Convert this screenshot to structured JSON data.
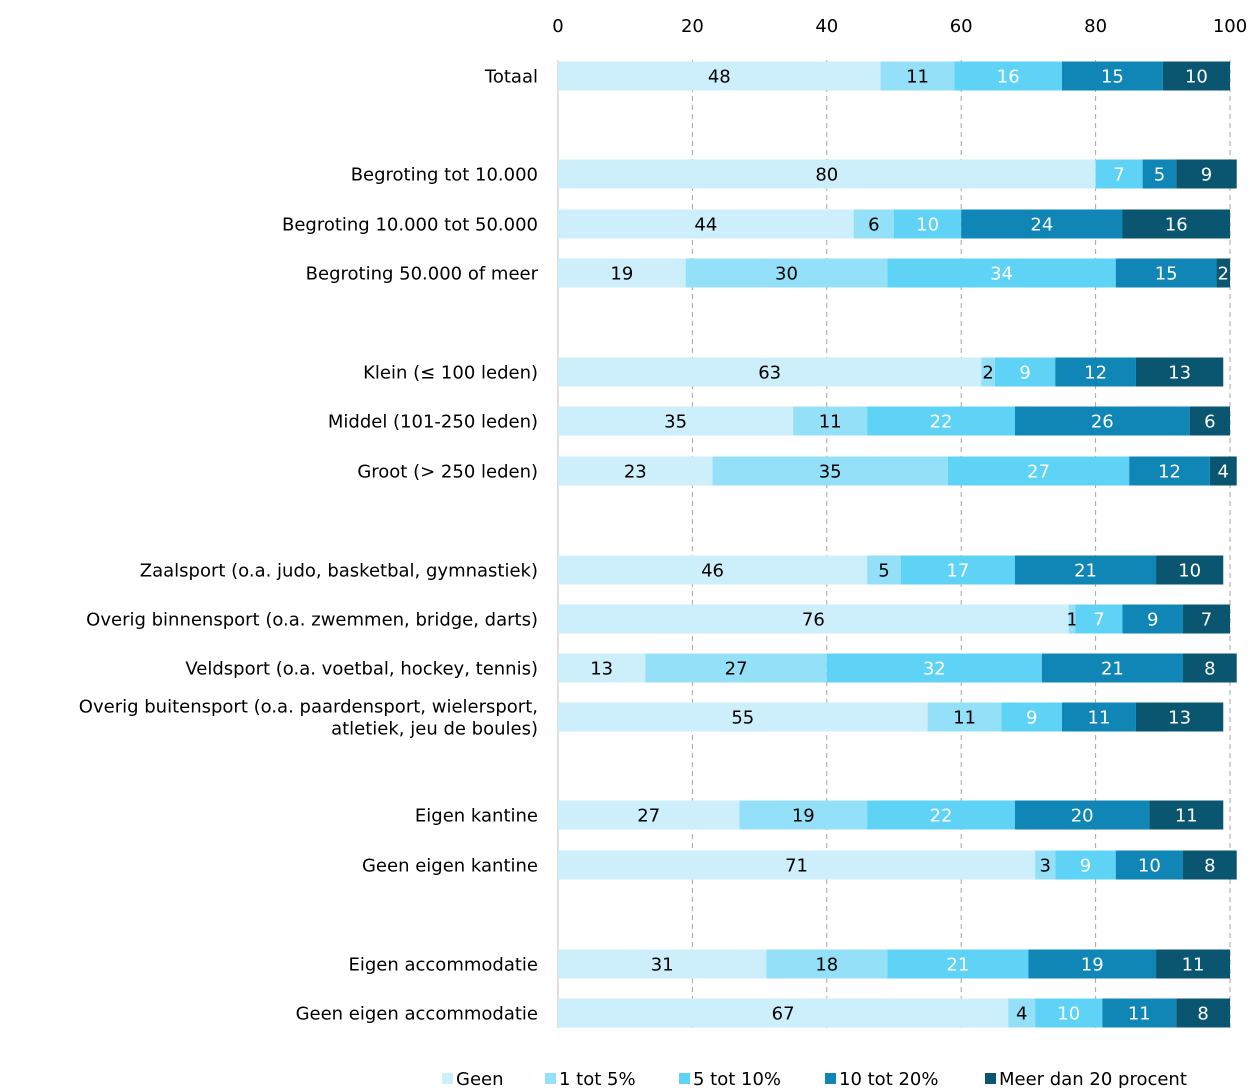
{
  "chart_data": {
    "type": "bar",
    "orientation": "horizontal",
    "stacked": true,
    "xlim": [
      0,
      100
    ],
    "xticks": [
      "0",
      "20",
      "40",
      "60",
      "80",
      "100"
    ],
    "grid": "vertical dashed",
    "legend_position": "bottom",
    "categories": [
      {
        "label": "Totaal",
        "values": [
          48,
          11,
          16,
          15,
          10
        ]
      },
      {
        "label": "Begroting tot 10.000",
        "values": [
          80,
          0,
          7,
          5,
          9
        ]
      },
      {
        "label": "Begroting 10.000 tot 50.000",
        "values": [
          44,
          6,
          10,
          24,
          16
        ]
      },
      {
        "label": "Begroting 50.000 of meer",
        "values": [
          19,
          30,
          34,
          15,
          2
        ]
      },
      {
        "label": "Klein (≤ 100 leden)",
        "values": [
          63,
          2,
          9,
          12,
          13
        ]
      },
      {
        "label": "Middel (101-250 leden)",
        "values": [
          35,
          11,
          22,
          26,
          6
        ]
      },
      {
        "label": "Groot (> 250 leden)",
        "values": [
          23,
          35,
          27,
          12,
          4
        ]
      },
      {
        "label": "Zaalsport (o.a. judo, basketbal, gymnastiek)",
        "values": [
          46,
          5,
          17,
          21,
          10
        ]
      },
      {
        "label": "Overig binnensport (o.a. zwemmen, bridge, darts)",
        "values": [
          76,
          1,
          7,
          9,
          7
        ]
      },
      {
        "label": "Veldsport (o.a. voetbal, hockey, tennis)",
        "values": [
          13,
          27,
          32,
          21,
          8
        ]
      },
      {
        "label": "Overig buitensport (o.a. paardensport, wielersport, atletiek, jeu de boules)",
        "label_lines": [
          "Overig buitensport (o.a. paardensport, wielersport,",
          "atletiek, jeu de boules)"
        ],
        "values": [
          55,
          11,
          9,
          11,
          13
        ]
      },
      {
        "label": "Eigen kantine",
        "values": [
          27,
          19,
          22,
          20,
          11
        ]
      },
      {
        "label": "Geen eigen kantine",
        "values": [
          71,
          3,
          9,
          10,
          8
        ]
      },
      {
        "label": "Eigen accommodatie",
        "values": [
          31,
          18,
          21,
          19,
          11
        ]
      },
      {
        "label": "Geen eigen accommodatie",
        "values": [
          67,
          4,
          10,
          11,
          8
        ]
      }
    ],
    "series": [
      {
        "name": "Geen",
        "color": "#cdeefb",
        "label_color": "#000000"
      },
      {
        "name": "1 tot 5%",
        "color": "#93e0f8",
        "label_color": "#000000"
      },
      {
        "name": "5 tot 10%",
        "color": "#5fd3f6",
        "label_color": "#ffffff"
      },
      {
        "name": "10 tot 20%",
        "color": "#0f86b5",
        "label_color": "#ffffff"
      },
      {
        "name": "Meer dan 20 procent",
        "color": "#0a5570",
        "label_color": "#ffffff"
      }
    ]
  }
}
